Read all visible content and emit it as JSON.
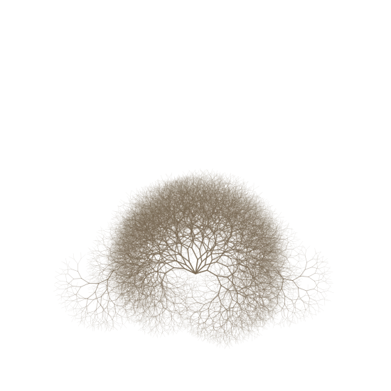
{
  "artwork": {
    "subject": "branching-tree-fan",
    "background_color": "#ffffff",
    "stroke_color": "#7a6a55",
    "style": "generative recursive branching lines fanning upward and outward from a central base, forming a heart-shaped notch at the bottom center"
  }
}
